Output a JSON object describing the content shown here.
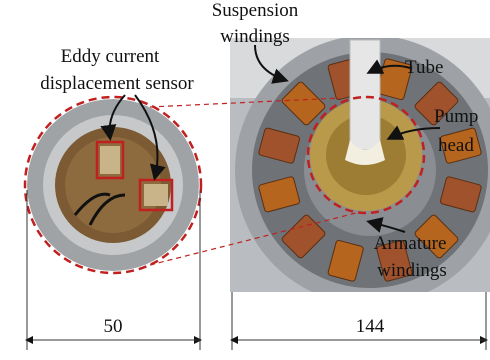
{
  "callouts": [
    {
      "lines": [
        "Suspension",
        "windings"
      ]
    },
    {
      "lines": [
        "Eddy current",
        "displacement sensor"
      ]
    },
    {
      "lines": [
        "Tube"
      ]
    },
    {
      "lines": [
        "Pump",
        "head"
      ]
    },
    {
      "lines": [
        "Armature",
        "windings"
      ]
    }
  ],
  "dimensions": [
    50,
    144
  ]
}
